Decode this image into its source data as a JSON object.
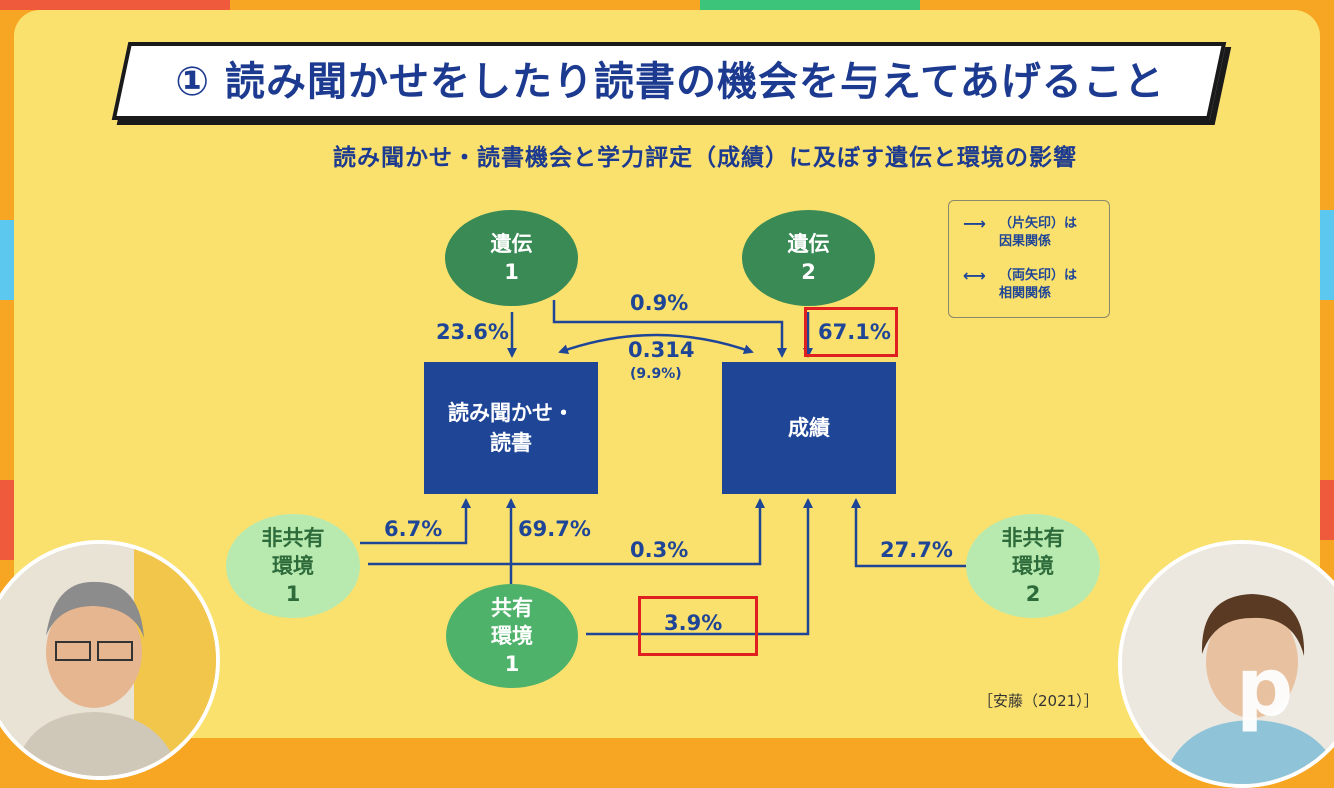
{
  "title": "① 読み聞かせをしたり読書の機会を与えてあげること",
  "subtitle": "読み聞かせ・読書機会と学力評定（成績）に及ぼす遺伝と環境の影響",
  "nodes": {
    "gene1": [
      "遺伝",
      "1"
    ],
    "gene2": [
      "遺伝",
      "2"
    ],
    "reading": [
      "読み聞かせ・",
      "読書"
    ],
    "grades": "成績",
    "nonshared1": [
      "非共有",
      "環境",
      "1"
    ],
    "nonshared2": [
      "非共有",
      "環境",
      "2"
    ],
    "shared1": [
      "共有",
      "環境",
      "1"
    ]
  },
  "values": {
    "g1_to_reading": "23.6%",
    "g1_to_grades": "0.9%",
    "correlation": "0.314",
    "correlation_pct": "(9.9%)",
    "g2_to_grades": "67.1%",
    "ns1_to_reading": "6.7%",
    "shared_to_reading": "69.7%",
    "ns1_to_grades": "0.3%",
    "shared_to_grades": "3.9%",
    "ns2_to_grades": "27.7%"
  },
  "legend": {
    "single_arrow": [
      "（片矢印）は",
      "因果関係"
    ],
    "double_arrow": [
      "（両矢印）は",
      "相関関係"
    ]
  },
  "citation": "［安藤（2021）］",
  "colors": {
    "panel": "#fae16e",
    "navy": "#1f4597",
    "gene_green": "#3a8a55",
    "shared_green": "#4fb26a",
    "nonshared_green": "#b8eab0",
    "highlight": "#e02020"
  }
}
